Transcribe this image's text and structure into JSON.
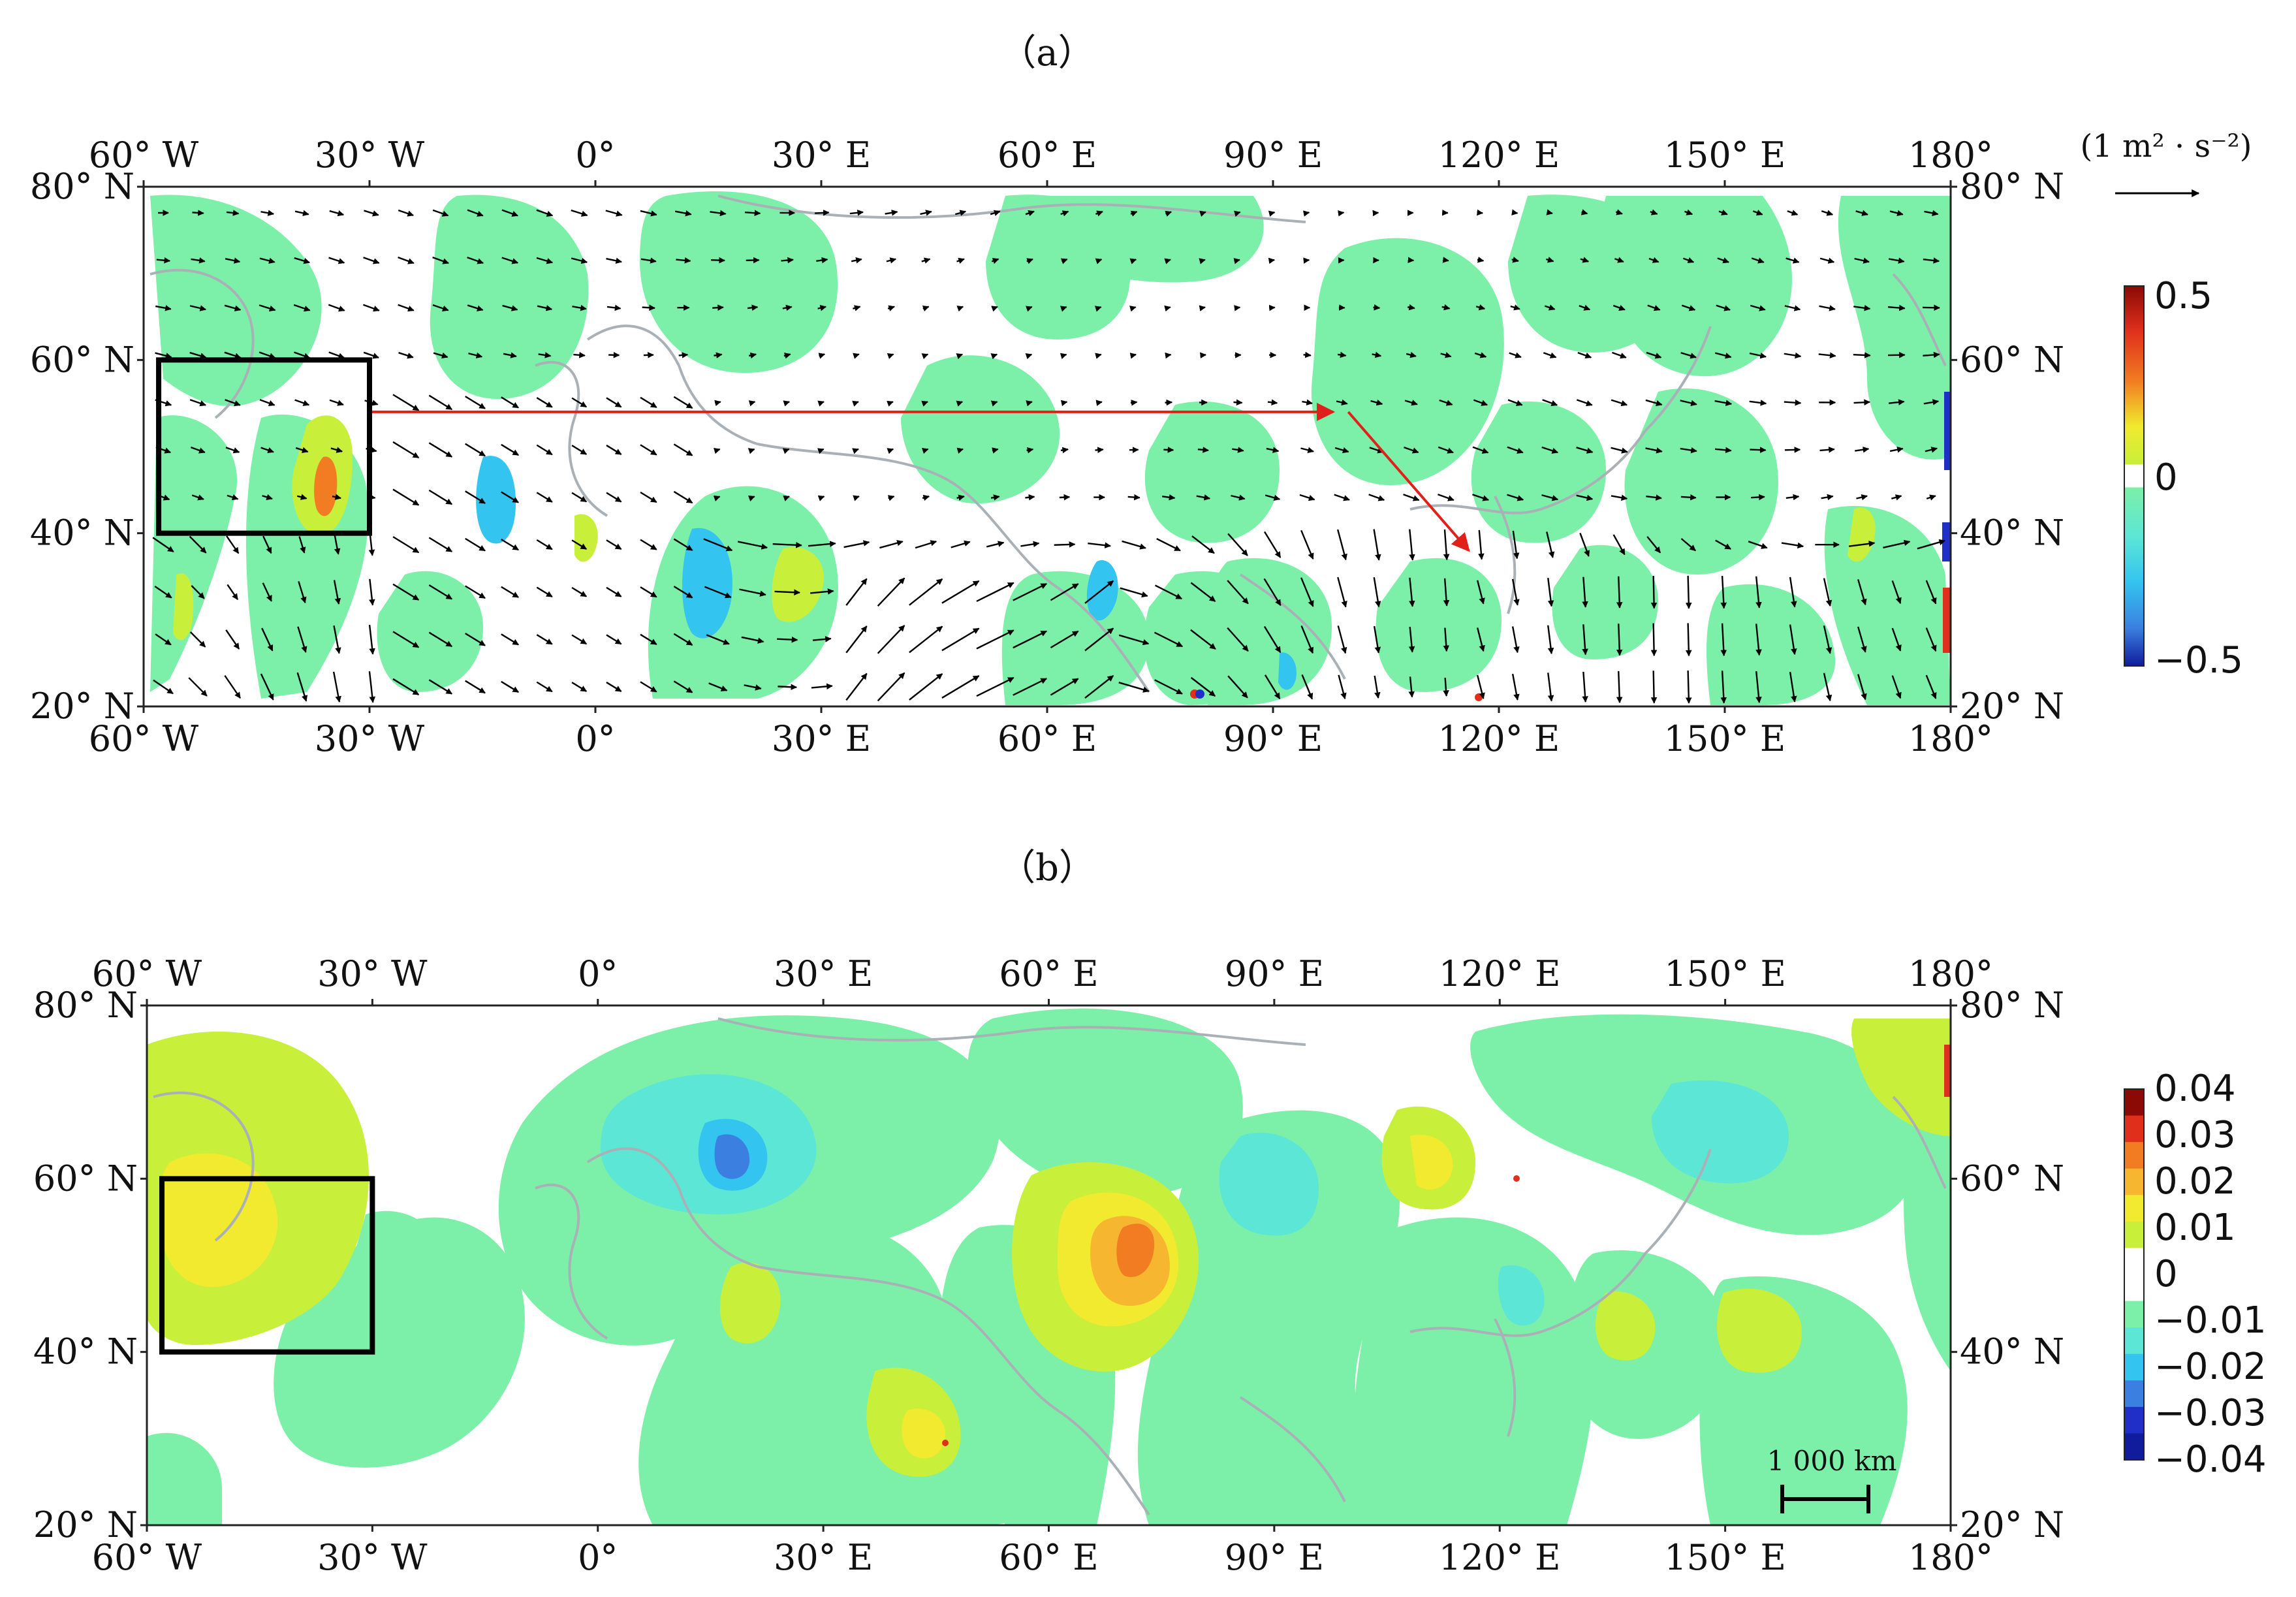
{
  "panels": [
    {
      "id": "a",
      "label": "（a）",
      "lon_ticks": [
        "60° W",
        "30° W",
        "0°",
        "30° E",
        "60° E",
        "90° E",
        "120° E",
        "150° E",
        "180°"
      ],
      "lat_ticks": [
        "80° N",
        "60° N",
        "40° N",
        "20° N"
      ],
      "lon_range": [
        -60,
        180
      ],
      "lat_range": [
        20,
        80
      ],
      "box_region": {
        "lon": [
          -58,
          -30
        ],
        "lat": [
          40,
          60
        ]
      },
      "wave_path_arrows": [
        {
          "from": [
            -30,
            54
          ],
          "to": [
            98,
            54
          ]
        },
        {
          "from": [
            100,
            54
          ],
          "to": [
            116,
            38
          ]
        }
      ],
      "vector_reference": {
        "units": "(1 m² · s⁻²)",
        "length": 1
      },
      "colorbar": {
        "ticks": [
          "0.5",
          "0",
          "−0.5"
        ],
        "min": -0.5,
        "max": 0.5
      }
    },
    {
      "id": "b",
      "label": "（b）",
      "lon_ticks": [
        "60° W",
        "30° W",
        "0°",
        "30° E",
        "60° E",
        "90° E",
        "120° E",
        "150° E",
        "180°"
      ],
      "lat_ticks": [
        "80° N",
        "60° N",
        "40° N",
        "20° N"
      ],
      "lon_range": [
        -60,
        180
      ],
      "lat_range": [
        20,
        80
      ],
      "box_region": {
        "lon": [
          -58,
          -30
        ],
        "lat": [
          40,
          60
        ]
      },
      "scale_bar": {
        "label": "1 000 km"
      },
      "colorbar": {
        "ticks": [
          "0.04",
          "0.03",
          "0.02",
          "0.01",
          "0",
          "−0.01",
          "−0.02",
          "−0.03",
          "−0.04"
        ],
        "min": -0.04,
        "max": 0.04
      }
    }
  ],
  "colors": {
    "frame": "#222222",
    "coast": "#a9b1b7",
    "box": "#000000",
    "wave_arrow": "#e0201b",
    "vector": "#000000",
    "neg_1": "#7cf0a8",
    "neg_2": "#5ce6d6",
    "neg_3": "#33c4f0",
    "neg_4": "#3b7fe0",
    "neg_5": "#1f2fc8",
    "pos_1": "#c8ef3a",
    "pos_2": "#f1ea2e",
    "pos_3": "#f7b630",
    "pos_4": "#f27c22",
    "pos_5": "#e0301c",
    "pos_6": "#8b0a06"
  }
}
